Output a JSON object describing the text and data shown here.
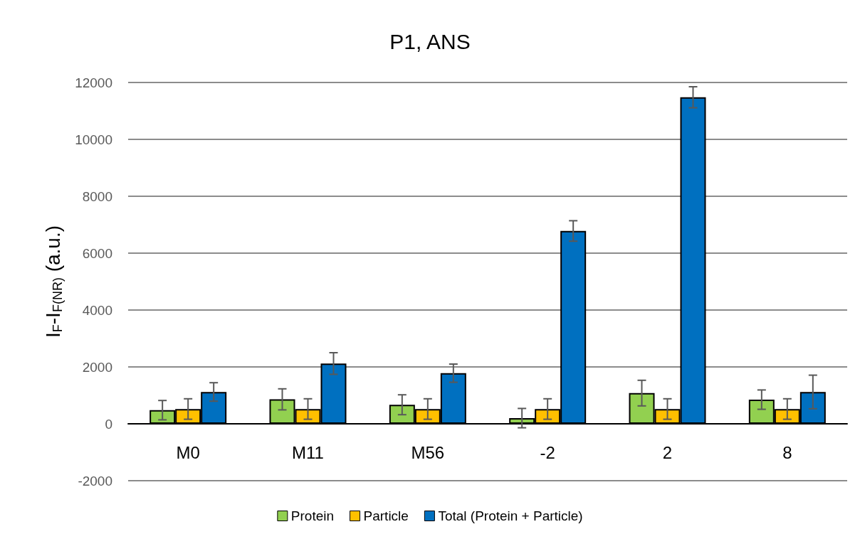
{
  "chart_data": {
    "type": "bar",
    "title": "P1, ANS",
    "ylabel": "I$_{F}$-I$_{F(NR)}$ (a.u.)",
    "categories": [
      "M0",
      "M11",
      "M56",
      "-2",
      "2",
      "8"
    ],
    "series": [
      {
        "name": "Protein",
        "color": "#92d050",
        "values": [
          480,
          860,
          670,
          200,
          1080,
          850
        ],
        "errors": [
          340,
          370,
          350,
          340,
          450,
          340
        ]
      },
      {
        "name": "Particle",
        "color": "#ffc000",
        "values": [
          520,
          520,
          520,
          520,
          520,
          520
        ],
        "errors": [
          360,
          360,
          360,
          360,
          360,
          360
        ]
      },
      {
        "name": "Total (Protein + Particle)",
        "color": "#0070c0",
        "values": [
          1120,
          2120,
          1780,
          6780,
          11480,
          1120
        ],
        "errors": [
          325,
          380,
          320,
          360,
          370,
          590
        ]
      }
    ],
    "ylim": [
      -2000,
      12000
    ],
    "yticks": [
      -2000,
      0,
      2000,
      4000,
      6000,
      8000,
      10000,
      12000
    ],
    "grid": "y",
    "legend": "bottom"
  }
}
